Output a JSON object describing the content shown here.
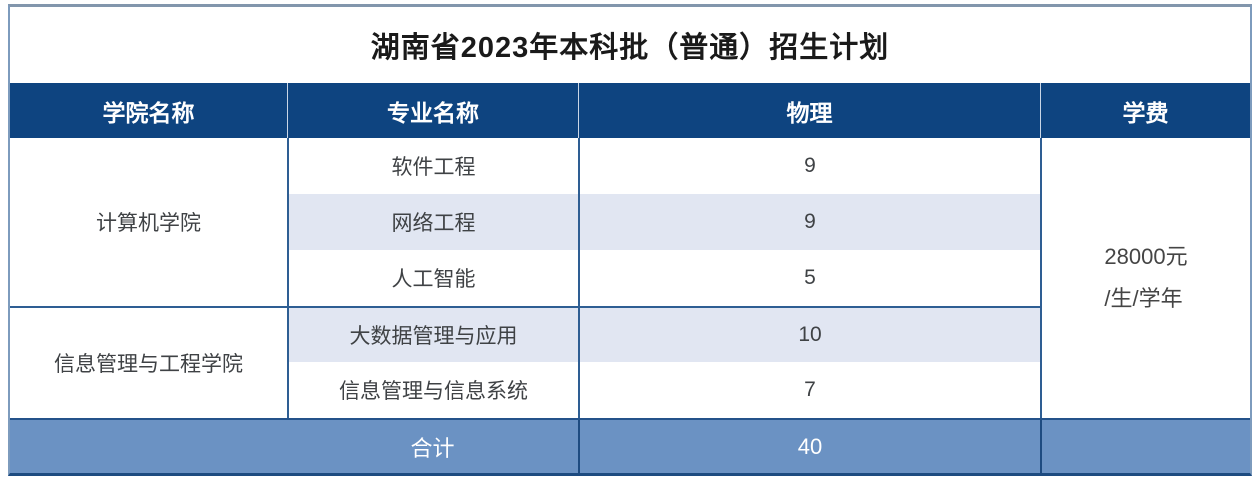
{
  "title": "湖南省2023年本科批（普通）招生计划",
  "colors": {
    "header_bg": "#0e4480",
    "header_text": "#ffffff",
    "stripe_bg": "#e1e6f2",
    "body_text": "#3f4245",
    "divider_navy": "#2e5e93",
    "footer_bg": "#6b92c3",
    "footer_divider": "#1e4b80",
    "outer_border_top": "#8296ac",
    "outer_border_bottom": "#1d4b80"
  },
  "table": {
    "columns": [
      "学院名称",
      "专业名称",
      "物理",
      "学费"
    ],
    "groups": [
      {
        "college": "计算机学院",
        "majors": [
          {
            "name": "软件工程",
            "physics": "9"
          },
          {
            "name": "网络工程",
            "physics": "9"
          },
          {
            "name": "人工智能",
            "physics": "5"
          }
        ]
      },
      {
        "college": "信息管理与工程学院",
        "majors": [
          {
            "name": "大数据管理与应用",
            "physics": "10"
          },
          {
            "name": "信息管理与信息系统",
            "physics": "7"
          }
        ]
      }
    ],
    "tuition_line1": "28000元",
    "tuition_line2": "/生/学年",
    "footer": {
      "label": "合计",
      "total": "40"
    }
  },
  "chart_data": {
    "type": "table",
    "columns": [
      "学院名称",
      "专业名称",
      "物理",
      "学费"
    ],
    "rows": [
      [
        "计算机学院",
        "软件工程",
        "9",
        "28000元/生/学年"
      ],
      [
        "计算机学院",
        "网络工程",
        "9",
        "28000元/生/学年"
      ],
      [
        "计算机学院",
        "人工智能",
        "5",
        "28000元/生/学年"
      ],
      [
        "信息管理与工程学院",
        "大数据管理与应用",
        "10",
        "28000元/生/学年"
      ],
      [
        "信息管理与工程学院",
        "信息管理与信息系统",
        "7",
        "28000元/生/学年"
      ]
    ],
    "footer": [
      "合计",
      "",
      "40",
      ""
    ],
    "title": "湖南省2023年本科批（普通）招生计划"
  }
}
